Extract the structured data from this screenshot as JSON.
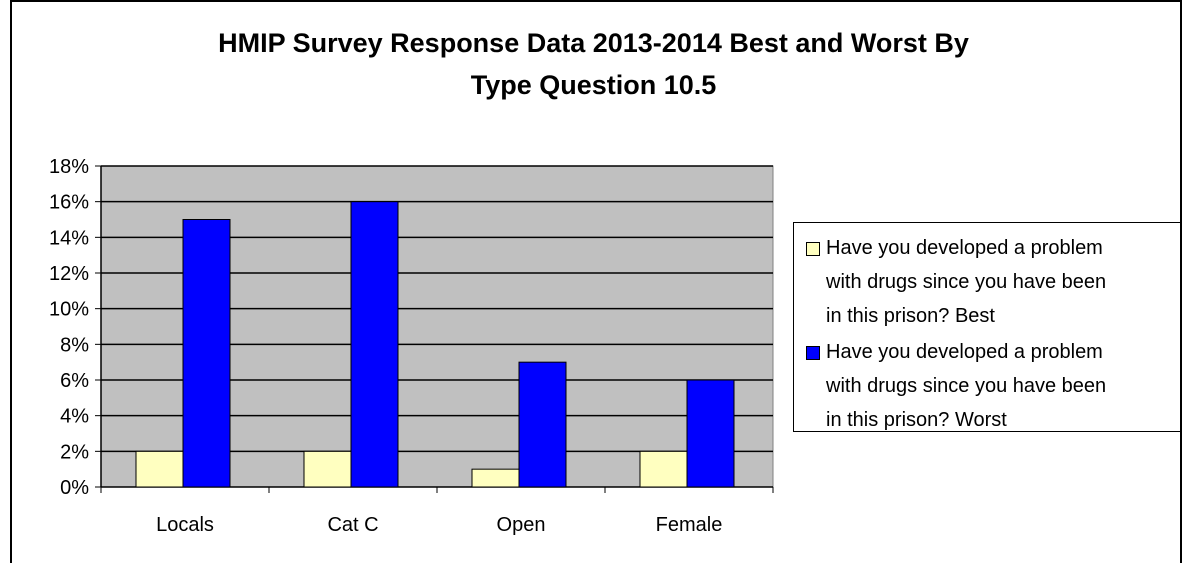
{
  "chart_data": {
    "type": "bar",
    "title_line1": "HMIP Survey Response Data 2013-2014 Best and Worst By",
    "title_line2": "Type  Question 10.5",
    "categories": [
      "Locals",
      "Cat C",
      "Open",
      "Female"
    ],
    "series": [
      {
        "name": "Have you developed a problem with drugs since you have been in this prison? Best",
        "name_lines": [
          "Have you developed a problem",
          "with drugs since you have been",
          "in this prison? Best"
        ],
        "values": [
          0.02,
          0.02,
          0.01,
          0.02
        ],
        "color": "#FFFFC0"
      },
      {
        "name": "Have you developed a problem with drugs since you have been in this prison? Worst",
        "name_lines": [
          "Have you developed a problem",
          "with drugs since you have been",
          "in this prison? Worst"
        ],
        "values": [
          0.15,
          0.16,
          0.07,
          0.06
        ],
        "color": "#0000FF"
      }
    ],
    "ylim": [
      0,
      0.18
    ],
    "yticks": [
      "0%",
      "2%",
      "4%",
      "6%",
      "8%",
      "10%",
      "12%",
      "14%",
      "16%",
      "18%"
    ],
    "plot_background": "#C0C0C0",
    "grid": true,
    "legend_position": "right"
  }
}
